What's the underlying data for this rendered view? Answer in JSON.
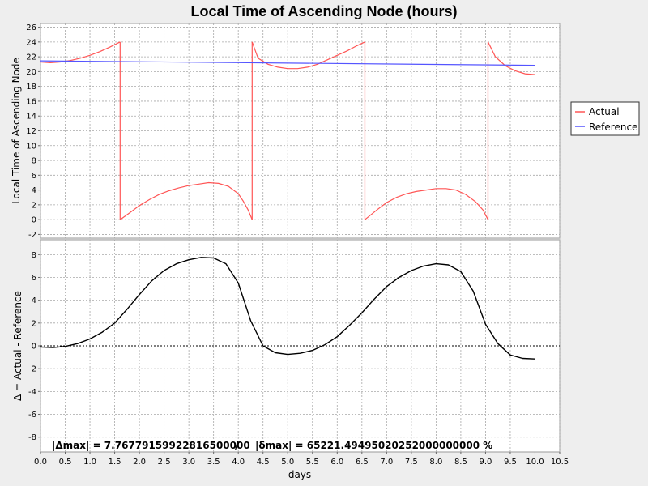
{
  "chart_data": [
    {
      "type": "line",
      "title": "Local Time of Ascending Node (hours)",
      "ylabel": "Local Time of Ascending Node",
      "xlim": [
        0,
        10.5
      ],
      "ylim": [
        -2.5,
        26.5
      ],
      "yticks": [
        -2,
        0,
        2,
        4,
        6,
        8,
        10,
        12,
        14,
        16,
        18,
        20,
        22,
        24,
        26
      ],
      "grid": true,
      "legend_placement": "right",
      "series": [
        {
          "name": "Actual",
          "color": "#ff5555",
          "segments": [
            {
              "x": [
                0,
                0.2,
                0.4,
                0.6,
                0.8,
                1.0,
                1.2,
                1.4,
                1.61
              ],
              "y": [
                21.3,
                21.2,
                21.3,
                21.5,
                21.8,
                22.2,
                22.7,
                23.3,
                24.0
              ]
            },
            {
              "x": [
                1.61,
                1.8,
                2.0,
                2.2,
                2.4,
                2.6,
                2.8,
                3.0,
                3.2,
                3.4,
                3.6,
                3.8,
                4.0,
                4.1,
                4.2,
                4.28
              ],
              "y": [
                0.0,
                0.9,
                1.9,
                2.7,
                3.4,
                3.9,
                4.3,
                4.6,
                4.8,
                5.0,
                4.9,
                4.5,
                3.5,
                2.5,
                1.3,
                0.0
              ]
            },
            {
              "x": [
                4.28,
                4.4,
                4.6,
                4.8,
                5.0,
                5.2,
                5.4,
                5.6,
                5.8,
                6.0,
                6.2,
                6.4,
                6.56
              ],
              "y": [
                24.0,
                21.8,
                21.0,
                20.6,
                20.4,
                20.4,
                20.6,
                21.0,
                21.6,
                22.2,
                22.8,
                23.5,
                24.0
              ]
            },
            {
              "x": [
                6.56,
                6.8,
                7.0,
                7.2,
                7.4,
                7.6,
                7.8,
                8.0,
                8.2,
                8.4,
                8.6,
                8.8,
                8.95,
                9.05
              ],
              "y": [
                0.0,
                1.3,
                2.3,
                3.0,
                3.5,
                3.8,
                4.0,
                4.2,
                4.2,
                4.0,
                3.4,
                2.4,
                1.3,
                0.0
              ]
            },
            {
              "x": [
                9.05,
                9.2,
                9.4,
                9.6,
                9.8,
                10.0
              ],
              "y": [
                24.0,
                22.0,
                20.8,
                20.1,
                19.7,
                19.6
              ]
            }
          ]
        },
        {
          "name": "Reference",
          "color": "#5555ff",
          "segments": [
            {
              "x": [
                0,
                10.0
              ],
              "y": [
                21.45,
                20.85
              ]
            }
          ]
        }
      ]
    },
    {
      "type": "line",
      "ylabel": "Δ = Actual - Reference",
      "xlabel": "days",
      "xlim": [
        0,
        10.5
      ],
      "ylim": [
        -9.3,
        9.3
      ],
      "xticks": [
        0,
        0.5,
        1,
        1.5,
        2,
        2.5,
        3,
        3.5,
        4,
        4.5,
        5,
        5.5,
        6,
        6.5,
        7,
        7.5,
        8,
        8.5,
        9,
        9.5,
        10,
        10.5
      ],
      "yticks": [
        -8,
        -6,
        -4,
        -2,
        0,
        2,
        4,
        6,
        8
      ],
      "grid": true,
      "zero_line": true,
      "series": [
        {
          "name": "",
          "color": "#000000",
          "segments": [
            {
              "x": [
                0,
                0.25,
                0.5,
                0.75,
                1.0,
                1.25,
                1.5,
                1.75,
                2.0,
                2.25,
                2.5,
                2.75,
                3.0,
                3.25,
                3.5,
                3.75,
                4.0,
                4.25,
                4.5,
                4.75,
                5.0,
                5.25,
                5.5,
                5.75,
                6.0,
                6.25,
                6.5,
                6.75,
                7.0,
                7.25,
                7.5,
                7.75,
                8.0,
                8.25,
                8.5,
                8.75,
                9.0,
                9.25,
                9.5,
                9.75,
                10.0
              ],
              "y": [
                -0.1,
                -0.15,
                -0.05,
                0.2,
                0.6,
                1.2,
                2.0,
                3.2,
                4.5,
                5.7,
                6.6,
                7.2,
                7.55,
                7.75,
                7.7,
                7.2,
                5.5,
                2.2,
                0.0,
                -0.6,
                -0.75,
                -0.65,
                -0.4,
                0.1,
                0.8,
                1.8,
                2.9,
                4.1,
                5.2,
                6.0,
                6.6,
                7.0,
                7.2,
                7.1,
                6.5,
                4.8,
                1.9,
                0.2,
                -0.8,
                -1.1,
                -1.15
              ]
            }
          ]
        }
      ],
      "annotation": {
        "delta_max_label": "|Δmax| = 7.76779159922816500000",
        "separator": "/",
        "rel_max_label": "|δmax| = 65221.49495020252000000000 %"
      }
    }
  ]
}
